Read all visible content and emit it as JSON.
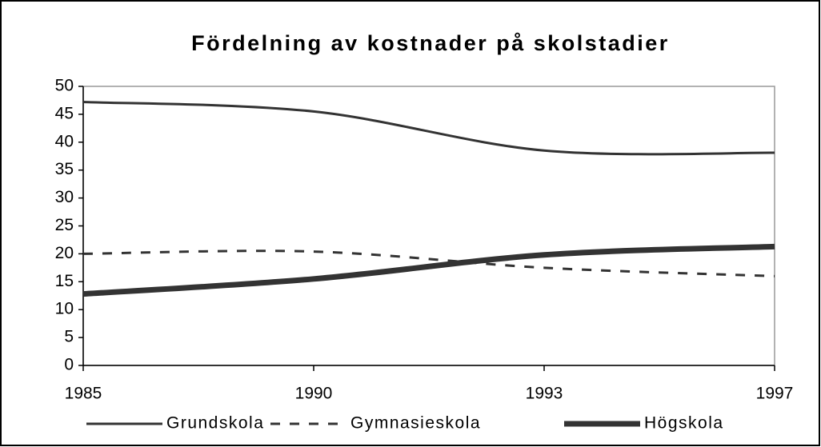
{
  "chart_data": {
    "type": "line",
    "title": "Fördelning av kostnader på skolstadier",
    "categories": [
      "1985",
      "1990",
      "1993",
      "1997"
    ],
    "series": [
      {
        "name": "Grundskola",
        "color": "#333333",
        "line_style": "solid",
        "line_width": 3,
        "values": [
          47.2,
          45.5,
          38.5,
          38.1
        ]
      },
      {
        "name": "Gymnasieskola",
        "color": "#333333",
        "line_style": "dashed",
        "line_width": 3,
        "values": [
          20,
          20.4,
          17.5,
          16
        ]
      },
      {
        "name": "Högskola",
        "color": "#333333",
        "line_style": "solid",
        "line_width": 7,
        "values": [
          12.8,
          15.5,
          19.8,
          21.3
        ]
      }
    ],
    "ylim": [
      0,
      50
    ],
    "yticks": [
      0,
      5,
      10,
      15,
      20,
      25,
      30,
      35,
      40,
      45,
      50
    ],
    "grid": false,
    "legend": "bottom"
  }
}
